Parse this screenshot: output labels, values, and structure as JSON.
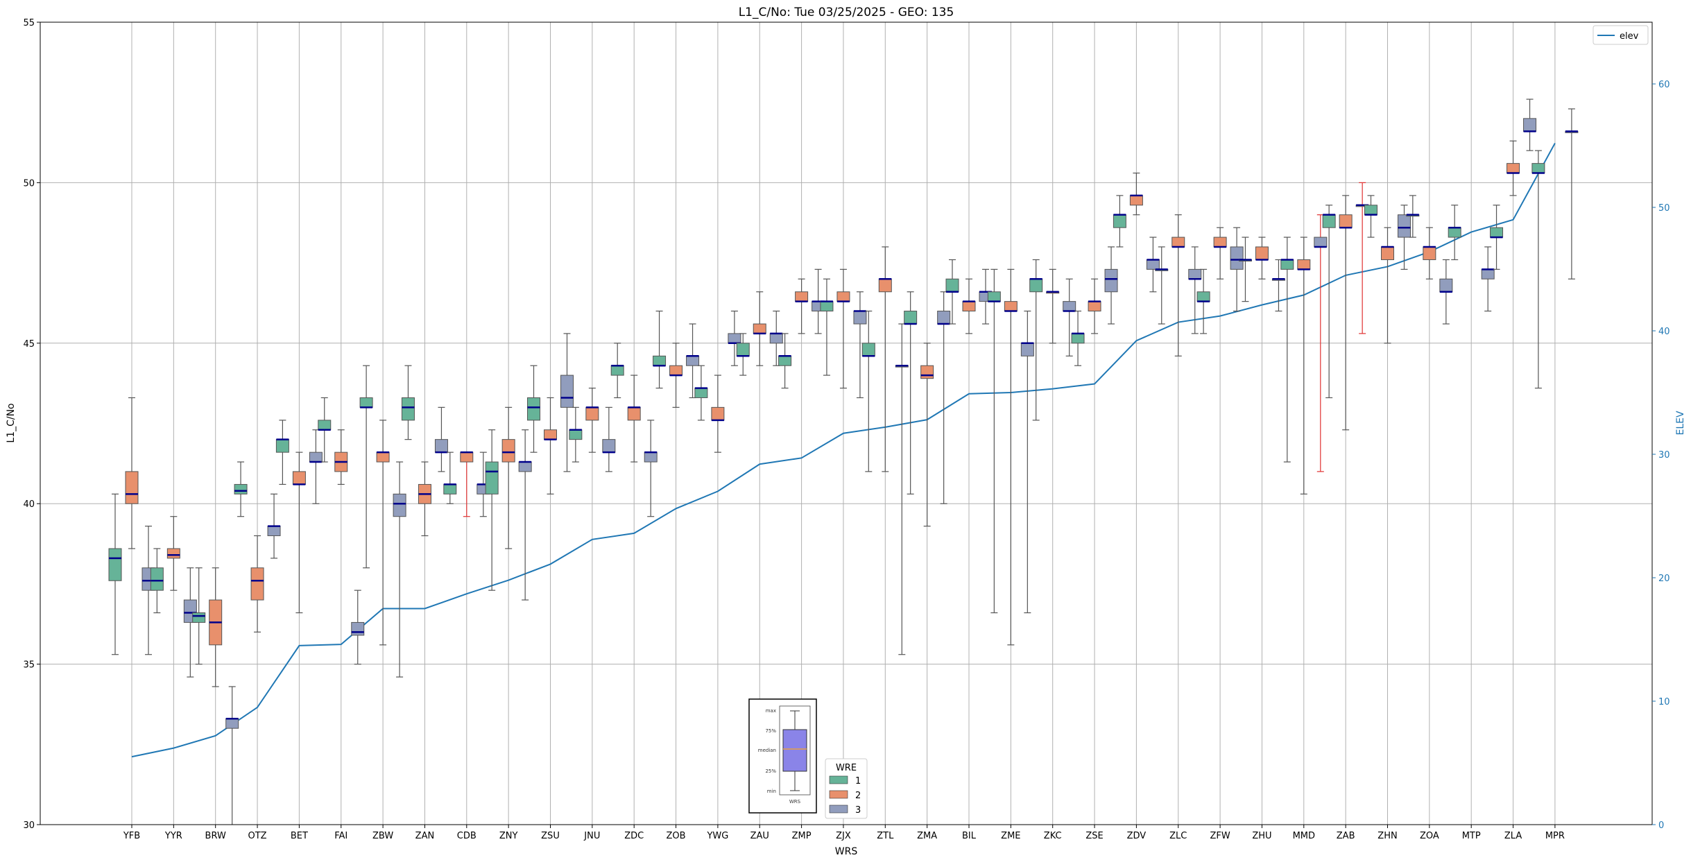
{
  "chart_data": {
    "type": "boxplot",
    "title": "L1_C/No: Tue 03/25/2025 - GEO: 135",
    "xlabel": "WRS",
    "ylabel": "L1_C/No",
    "ylabel_right": "ELEV",
    "ylim": [
      30,
      55
    ],
    "ylim_right": [
      0,
      65
    ],
    "yticks": [
      "30",
      "35",
      "40",
      "45",
      "50",
      "55"
    ],
    "yticks_right": [
      "0",
      "10",
      "20",
      "30",
      "40",
      "50",
      "60"
    ],
    "grid": true,
    "colors": {
      "wre1": "#66b398",
      "wre2": "#e8906c",
      "wre3": "#919dbd",
      "elev": "#1f77b4",
      "median": "#00008b",
      "whisker": "#555555",
      "whisker_alt": "#e03030",
      "axis_right": "#1f77b4"
    },
    "categories": [
      "YFB",
      "YYR",
      "BRW",
      "OTZ",
      "BET",
      "FAI",
      "ZBW",
      "ZAN",
      "CDB",
      "ZNY",
      "ZSU",
      "JNU",
      "ZDC",
      "ZOB",
      "YWG",
      "ZAU",
      "ZMP",
      "ZJX",
      "ZTL",
      "ZMA",
      "BIL",
      "ZME",
      "ZKC",
      "ZSE",
      "ZDV",
      "ZLC",
      "ZFW",
      "ZHU",
      "MMD",
      "ZAB",
      "ZHN",
      "ZOA",
      "MTP",
      "ZLA",
      "MPR"
    ],
    "elev": [
      5.5,
      6.2,
      7.2,
      9.5,
      14.5,
      14.6,
      17.5,
      17.5,
      18.7,
      19.8,
      21.1,
      23.1,
      23.6,
      25.6,
      27.0,
      29.2,
      29.7,
      31.7,
      32.2,
      32.8,
      34.9,
      35.0,
      35.3,
      35.7,
      39.2,
      40.7,
      41.2,
      42.1,
      42.9,
      44.5,
      45.2,
      46.4,
      48.0,
      49.0,
      55.2
    ],
    "boxes": [
      {
        "wrs": "YFB",
        "wre": 1,
        "min": 35.3,
        "q1": 37.6,
        "med": 38.3,
        "q3": 38.6,
        "max": 40.3
      },
      {
        "wrs": "YFB",
        "wre": 2,
        "min": 38.6,
        "q1": 40.0,
        "med": 40.3,
        "q3": 41.0,
        "max": 43.3
      },
      {
        "wrs": "YFB",
        "wre": 3,
        "min": 35.3,
        "q1": 37.3,
        "med": 37.6,
        "q3": 38.0,
        "max": 39.3
      },
      {
        "wrs": "YYR",
        "wre": 1,
        "min": 36.6,
        "q1": 37.3,
        "med": 37.6,
        "q3": 38.0,
        "max": 38.6
      },
      {
        "wrs": "YYR",
        "wre": 2,
        "min": 37.3,
        "q1": 38.3,
        "med": 38.4,
        "q3": 38.6,
        "max": 39.6
      },
      {
        "wrs": "YYR",
        "wre": 3,
        "min": 34.6,
        "q1": 36.3,
        "med": 36.6,
        "q3": 37.0,
        "max": 38.0
      },
      {
        "wrs": "BRW",
        "wre": 1,
        "min": 35.0,
        "q1": 36.3,
        "med": 36.5,
        "q3": 36.6,
        "max": 38.0
      },
      {
        "wrs": "BRW",
        "wre": 2,
        "min": 34.3,
        "q1": 35.6,
        "med": 36.3,
        "q3": 37.0,
        "max": 38.0
      },
      {
        "wrs": "BRW",
        "wre": 3,
        "min": 30.0,
        "q1": 33.0,
        "med": 33.3,
        "q3": 33.3,
        "max": 34.3
      },
      {
        "wrs": "OTZ",
        "wre": 1,
        "min": 39.6,
        "q1": 40.3,
        "med": 40.4,
        "q3": 40.6,
        "max": 41.3
      },
      {
        "wrs": "OTZ",
        "wre": 2,
        "min": 36.0,
        "q1": 37.0,
        "med": 37.6,
        "q3": 38.0,
        "max": 39.0
      },
      {
        "wrs": "OTZ",
        "wre": 3,
        "min": 38.3,
        "q1": 39.0,
        "med": 39.3,
        "q3": 39.3,
        "max": 40.3
      },
      {
        "wrs": "BET",
        "wre": 1,
        "min": 40.6,
        "q1": 41.6,
        "med": 42.0,
        "q3": 42.0,
        "max": 42.6
      },
      {
        "wrs": "BET",
        "wre": 2,
        "min": 36.6,
        "q1": 40.6,
        "med": 40.6,
        "q3": 41.0,
        "max": 41.6
      },
      {
        "wrs": "BET",
        "wre": 3,
        "min": 40.0,
        "q1": 41.3,
        "med": 41.3,
        "q3": 41.6,
        "max": 42.3
      },
      {
        "wrs": "FAI",
        "wre": 1,
        "min": 41.3,
        "q1": 42.3,
        "med": 42.3,
        "q3": 42.6,
        "max": 43.3
      },
      {
        "wrs": "FAI",
        "wre": 2,
        "min": 40.6,
        "q1": 41.0,
        "med": 41.3,
        "q3": 41.6,
        "max": 42.3
      },
      {
        "wrs": "FAI",
        "wre": 3,
        "min": 35.0,
        "q1": 35.9,
        "med": 36.0,
        "q3": 36.3,
        "max": 37.3
      },
      {
        "wrs": "ZBW",
        "wre": 1,
        "min": 38.0,
        "q1": 43.0,
        "med": 43.0,
        "q3": 43.3,
        "max": 44.3
      },
      {
        "wrs": "ZBW",
        "wre": 2,
        "min": 35.6,
        "q1": 41.3,
        "med": 41.6,
        "q3": 41.6,
        "max": 42.6
      },
      {
        "wrs": "ZBW",
        "wre": 3,
        "min": 34.6,
        "q1": 39.6,
        "med": 40.0,
        "q3": 40.3,
        "max": 41.3
      },
      {
        "wrs": "ZAN",
        "wre": 1,
        "min": 42.0,
        "q1": 42.6,
        "med": 43.0,
        "q3": 43.3,
        "max": 44.3
      },
      {
        "wrs": "ZAN",
        "wre": 2,
        "min": 39.0,
        "q1": 40.0,
        "med": 40.3,
        "q3": 40.6,
        "max": 41.3
      },
      {
        "wrs": "ZAN",
        "wre": 3,
        "min": 41.0,
        "q1": 41.6,
        "med": 41.6,
        "q3": 42.0,
        "max": 43.0
      },
      {
        "wrs": "CDB",
        "wre": 1,
        "min": 40.0,
        "q1": 40.3,
        "med": 40.6,
        "q3": 40.6,
        "max": 41.6
      },
      {
        "wrs": "CDB",
        "wre": 2,
        "min": 39.6,
        "q1": 41.3,
        "med": 41.6,
        "q3": 41.6,
        "max": 41.6,
        "alt": true
      },
      {
        "wrs": "CDB",
        "wre": 3,
        "min": 39.6,
        "q1": 40.3,
        "med": 40.6,
        "q3": 40.6,
        "max": 41.6
      },
      {
        "wrs": "ZNY",
        "wre": 1,
        "min": 37.3,
        "q1": 40.3,
        "med": 41.0,
        "q3": 41.3,
        "max": 42.3
      },
      {
        "wrs": "ZNY",
        "wre": 2,
        "min": 38.6,
        "q1": 41.3,
        "med": 41.6,
        "q3": 42.0,
        "max": 43.0
      },
      {
        "wrs": "ZNY",
        "wre": 3,
        "min": 37.0,
        "q1": 41.0,
        "med": 41.3,
        "q3": 41.3,
        "max": 42.3
      },
      {
        "wrs": "ZSU",
        "wre": 1,
        "min": 41.6,
        "q1": 42.6,
        "med": 43.0,
        "q3": 43.3,
        "max": 44.3
      },
      {
        "wrs": "ZSU",
        "wre": 2,
        "min": 40.3,
        "q1": 42.0,
        "med": 42.0,
        "q3": 42.3,
        "max": 43.3
      },
      {
        "wrs": "ZSU",
        "wre": 3,
        "min": 41.0,
        "q1": 43.0,
        "med": 43.3,
        "q3": 44.0,
        "max": 45.3
      },
      {
        "wrs": "JNU",
        "wre": 1,
        "min": 41.3,
        "q1": 42.0,
        "med": 42.3,
        "q3": 42.3,
        "max": 43.0
      },
      {
        "wrs": "JNU",
        "wre": 2,
        "min": 41.6,
        "q1": 42.6,
        "med": 43.0,
        "q3": 43.0,
        "max": 43.6
      },
      {
        "wrs": "JNU",
        "wre": 3,
        "min": 41.0,
        "q1": 41.6,
        "med": 41.6,
        "q3": 42.0,
        "max": 43.0
      },
      {
        "wrs": "ZDC",
        "wre": 1,
        "min": 43.3,
        "q1": 44.0,
        "med": 44.3,
        "q3": 44.3,
        "max": 45.0
      },
      {
        "wrs": "ZDC",
        "wre": 2,
        "min": 41.3,
        "q1": 42.6,
        "med": 43.0,
        "q3": 43.0,
        "max": 44.0
      },
      {
        "wrs": "ZDC",
        "wre": 3,
        "min": 39.6,
        "q1": 41.3,
        "med": 41.6,
        "q3": 41.6,
        "max": 42.6
      },
      {
        "wrs": "ZOB",
        "wre": 1,
        "min": 43.6,
        "q1": 44.3,
        "med": 44.3,
        "q3": 44.6,
        "max": 46.0
      },
      {
        "wrs": "ZOB",
        "wre": 2,
        "min": 43.0,
        "q1": 44.0,
        "med": 44.0,
        "q3": 44.3,
        "max": 45.0
      },
      {
        "wrs": "ZOB",
        "wre": 3,
        "min": 43.3,
        "q1": 44.3,
        "med": 44.6,
        "q3": 44.6,
        "max": 45.6
      },
      {
        "wrs": "YWG",
        "wre": 1,
        "min": 42.6,
        "q1": 43.3,
        "med": 43.6,
        "q3": 43.6,
        "max": 44.3
      },
      {
        "wrs": "YWG",
        "wre": 2,
        "min": 41.6,
        "q1": 42.6,
        "med": 42.6,
        "q3": 43.0,
        "max": 44.0
      },
      {
        "wrs": "YWG",
        "wre": 3,
        "min": 44.3,
        "q1": 45.0,
        "med": 45.0,
        "q3": 45.3,
        "max": 46.0
      },
      {
        "wrs": "ZAU",
        "wre": 1,
        "min": 44.0,
        "q1": 44.6,
        "med": 44.6,
        "q3": 45.0,
        "max": 45.3
      },
      {
        "wrs": "ZAU",
        "wre": 2,
        "min": 44.3,
        "q1": 45.3,
        "med": 45.3,
        "q3": 45.6,
        "max": 46.6
      },
      {
        "wrs": "ZAU",
        "wre": 3,
        "min": 44.3,
        "q1": 45.0,
        "med": 45.3,
        "q3": 45.3,
        "max": 46.0
      },
      {
        "wrs": "ZMP",
        "wre": 1,
        "min": 43.6,
        "q1": 44.3,
        "med": 44.6,
        "q3": 44.6,
        "max": 45.3
      },
      {
        "wrs": "ZMP",
        "wre": 2,
        "min": 45.3,
        "q1": 46.3,
        "med": 46.3,
        "q3": 46.6,
        "max": 47.0
      },
      {
        "wrs": "ZMP",
        "wre": 3,
        "min": 45.3,
        "q1": 46.0,
        "med": 46.3,
        "q3": 46.3,
        "max": 47.3
      },
      {
        "wrs": "ZJX",
        "wre": 1,
        "min": 44.0,
        "q1": 46.0,
        "med": 46.3,
        "q3": 46.3,
        "max": 47.0
      },
      {
        "wrs": "ZJX",
        "wre": 2,
        "min": 43.6,
        "q1": 46.3,
        "med": 46.3,
        "q3": 46.6,
        "max": 47.3
      },
      {
        "wrs": "ZJX",
        "wre": 3,
        "min": 43.3,
        "q1": 45.6,
        "med": 46.0,
        "q3": 46.0,
        "max": 46.6
      },
      {
        "wrs": "ZTL",
        "wre": 1,
        "min": 41.0,
        "q1": 44.6,
        "med": 44.6,
        "q3": 45.0,
        "max": 46.0
      },
      {
        "wrs": "ZTL",
        "wre": 2,
        "min": 41.0,
        "q1": 46.6,
        "med": 47.0,
        "q3": 47.0,
        "max": 48.0
      },
      {
        "wrs": "ZTL",
        "wre": 3,
        "min": 35.3,
        "q1": 44.3,
        "med": 44.3,
        "q3": 44.3,
        "max": 45.6
      },
      {
        "wrs": "ZMA",
        "wre": 1,
        "min": 40.3,
        "q1": 45.6,
        "med": 45.6,
        "q3": 46.0,
        "max": 46.6
      },
      {
        "wrs": "ZMA",
        "wre": 2,
        "min": 39.3,
        "q1": 43.9,
        "med": 44.0,
        "q3": 44.3,
        "max": 45.0
      },
      {
        "wrs": "ZMA",
        "wre": 3,
        "min": 40.0,
        "q1": 45.6,
        "med": 45.6,
        "q3": 46.0,
        "max": 46.6
      },
      {
        "wrs": "BIL",
        "wre": 1,
        "min": 45.6,
        "q1": 46.6,
        "med": 46.6,
        "q3": 47.0,
        "max": 47.6
      },
      {
        "wrs": "BIL",
        "wre": 2,
        "min": 45.3,
        "q1": 46.0,
        "med": 46.3,
        "q3": 46.3,
        "max": 47.0
      },
      {
        "wrs": "BIL",
        "wre": 3,
        "min": 45.6,
        "q1": 46.3,
        "med": 46.6,
        "q3": 46.6,
        "max": 47.3
      },
      {
        "wrs": "ZME",
        "wre": 1,
        "min": 36.6,
        "q1": 46.3,
        "med": 46.3,
        "q3": 46.6,
        "max": 47.3
      },
      {
        "wrs": "ZME",
        "wre": 2,
        "min": 35.6,
        "q1": 46.0,
        "med": 46.0,
        "q3": 46.3,
        "max": 47.3
      },
      {
        "wrs": "ZME",
        "wre": 3,
        "min": 36.6,
        "q1": 44.6,
        "med": 45.0,
        "q3": 45.0,
        "max": 46.0
      },
      {
        "wrs": "ZKC",
        "wre": 1,
        "min": 42.6,
        "q1": 46.6,
        "med": 47.0,
        "q3": 47.0,
        "max": 47.6
      },
      {
        "wrs": "ZKC",
        "wre": 2,
        "min": 45.0,
        "q1": 46.6,
        "med": 46.6,
        "q3": 46.6,
        "max": 47.3
      },
      {
        "wrs": "ZKC",
        "wre": 3,
        "min": 44.6,
        "q1": 46.0,
        "med": 46.0,
        "q3": 46.3,
        "max": 47.0
      },
      {
        "wrs": "ZSE",
        "wre": 1,
        "min": 44.3,
        "q1": 45.0,
        "med": 45.3,
        "q3": 45.3,
        "max": 46.0
      },
      {
        "wrs": "ZSE",
        "wre": 2,
        "min": 45.3,
        "q1": 46.0,
        "med": 46.3,
        "q3": 46.3,
        "max": 47.0
      },
      {
        "wrs": "ZSE",
        "wre": 3,
        "min": 45.6,
        "q1": 46.6,
        "med": 47.0,
        "q3": 47.3,
        "max": 48.0
      },
      {
        "wrs": "ZDV",
        "wre": 1,
        "min": 48.0,
        "q1": 48.6,
        "med": 49.0,
        "q3": 49.0,
        "max": 49.6
      },
      {
        "wrs": "ZDV",
        "wre": 2,
        "min": 49.0,
        "q1": 49.3,
        "med": 49.6,
        "q3": 49.6,
        "max": 50.3
      },
      {
        "wrs": "ZDV",
        "wre": 3,
        "min": 46.6,
        "q1": 47.3,
        "med": 47.6,
        "q3": 47.6,
        "max": 48.3
      },
      {
        "wrs": "ZLC",
        "wre": 1,
        "min": 45.6,
        "q1": 47.3,
        "med": 47.3,
        "q3": 47.3,
        "max": 48.0
      },
      {
        "wrs": "ZLC",
        "wre": 2,
        "min": 44.6,
        "q1": 48.0,
        "med": 48.0,
        "q3": 48.3,
        "max": 49.0
      },
      {
        "wrs": "ZLC",
        "wre": 3,
        "min": 45.3,
        "q1": 47.0,
        "med": 47.0,
        "q3": 47.3,
        "max": 48.0
      },
      {
        "wrs": "ZFW",
        "wre": 1,
        "min": 45.3,
        "q1": 46.3,
        "med": 46.3,
        "q3": 46.6,
        "max": 47.3
      },
      {
        "wrs": "ZFW",
        "wre": 2,
        "min": 47.0,
        "q1": 48.0,
        "med": 48.0,
        "q3": 48.3,
        "max": 48.6
      },
      {
        "wrs": "ZFW",
        "wre": 3,
        "min": 46.0,
        "q1": 47.3,
        "med": 47.6,
        "q3": 48.0,
        "max": 48.6
      },
      {
        "wrs": "ZHU",
        "wre": 1,
        "min": 46.3,
        "q1": 47.6,
        "med": 47.6,
        "q3": 47.6,
        "max": 48.3
      },
      {
        "wrs": "ZHU",
        "wre": 2,
        "min": 47.0,
        "q1": 47.6,
        "med": 47.6,
        "q3": 48.0,
        "max": 48.3
      },
      {
        "wrs": "ZHU",
        "wre": 3,
        "min": 46.0,
        "q1": 47.0,
        "med": 47.0,
        "q3": 47.0,
        "max": 47.6
      },
      {
        "wrs": "MMD",
        "wre": 1,
        "min": 41.3,
        "q1": 47.3,
        "med": 47.6,
        "q3": 47.6,
        "max": 48.3
      },
      {
        "wrs": "MMD",
        "wre": 2,
        "min": 40.3,
        "q1": 47.3,
        "med": 47.3,
        "q3": 47.6,
        "max": 48.3
      },
      {
        "wrs": "MMD",
        "wre": 3,
        "min": 41.0,
        "q1": 48.0,
        "med": 48.0,
        "q3": 48.3,
        "max": 49.0,
        "alt": true
      },
      {
        "wrs": "ZAB",
        "wre": 1,
        "min": 43.3,
        "q1": 48.6,
        "med": 49.0,
        "q3": 49.0,
        "max": 49.3
      },
      {
        "wrs": "ZAB",
        "wre": 2,
        "min": 42.3,
        "q1": 48.6,
        "med": 48.6,
        "q3": 49.0,
        "max": 49.6
      },
      {
        "wrs": "ZAB",
        "wre": 3,
        "min": 45.3,
        "q1": 49.3,
        "med": 49.3,
        "q3": 49.3,
        "max": 50.0,
        "alt": true
      },
      {
        "wrs": "ZHN",
        "wre": 1,
        "min": 48.3,
        "q1": 49.0,
        "med": 49.0,
        "q3": 49.3,
        "max": 49.6
      },
      {
        "wrs": "ZHN",
        "wre": 2,
        "min": 45.0,
        "q1": 47.6,
        "med": 48.0,
        "q3": 48.0,
        "max": 48.6
      },
      {
        "wrs": "ZHN",
        "wre": 3,
        "min": 47.3,
        "q1": 48.3,
        "med": 48.6,
        "q3": 49.0,
        "max": 49.3
      },
      {
        "wrs": "ZOA",
        "wre": 1,
        "min": 48.3,
        "q1": 49.0,
        "med": 49.0,
        "q3": 49.0,
        "max": 49.6
      },
      {
        "wrs": "ZOA",
        "wre": 2,
        "min": 47.0,
        "q1": 47.6,
        "med": 48.0,
        "q3": 48.0,
        "max": 48.6
      },
      {
        "wrs": "ZOA",
        "wre": 3,
        "min": 45.6,
        "q1": 46.6,
        "med": 46.6,
        "q3": 47.0,
        "max": 47.6
      },
      {
        "wrs": "MTP",
        "wre": 1,
        "min": 47.6,
        "q1": 48.3,
        "med": 48.6,
        "q3": 48.6,
        "max": 49.3
      },
      {
        "wrs": "MTP",
        "wre": 3,
        "min": 46.0,
        "q1": 47.0,
        "med": 47.3,
        "q3": 47.3,
        "max": 48.0
      },
      {
        "wrs": "ZLA",
        "wre": 1,
        "min": 47.3,
        "q1": 48.3,
        "med": 48.3,
        "q3": 48.6,
        "max": 49.3
      },
      {
        "wrs": "ZLA",
        "wre": 2,
        "min": 49.6,
        "q1": 50.3,
        "med": 50.3,
        "q3": 50.6,
        "max": 51.3
      },
      {
        "wrs": "ZLA",
        "wre": 3,
        "min": 51.0,
        "q1": 51.6,
        "med": 51.6,
        "q3": 52.0,
        "max": 52.6
      },
      {
        "wrs": "MPR",
        "wre": 1,
        "min": 43.6,
        "q1": 50.3,
        "med": 50.3,
        "q3": 50.6,
        "max": 51.0
      },
      {
        "wrs": "MPR",
        "wre": 3,
        "min": 47.0,
        "q1": 51.6,
        "med": 51.6,
        "q3": 51.6,
        "max": 52.3
      }
    ],
    "legend": {
      "title": "WRE",
      "entries": [
        "1",
        "2",
        "3"
      ]
    },
    "elev_legend": "elev",
    "inset_labels": [
      "max",
      "75%",
      "median",
      "25%",
      "min",
      "WRS"
    ]
  }
}
